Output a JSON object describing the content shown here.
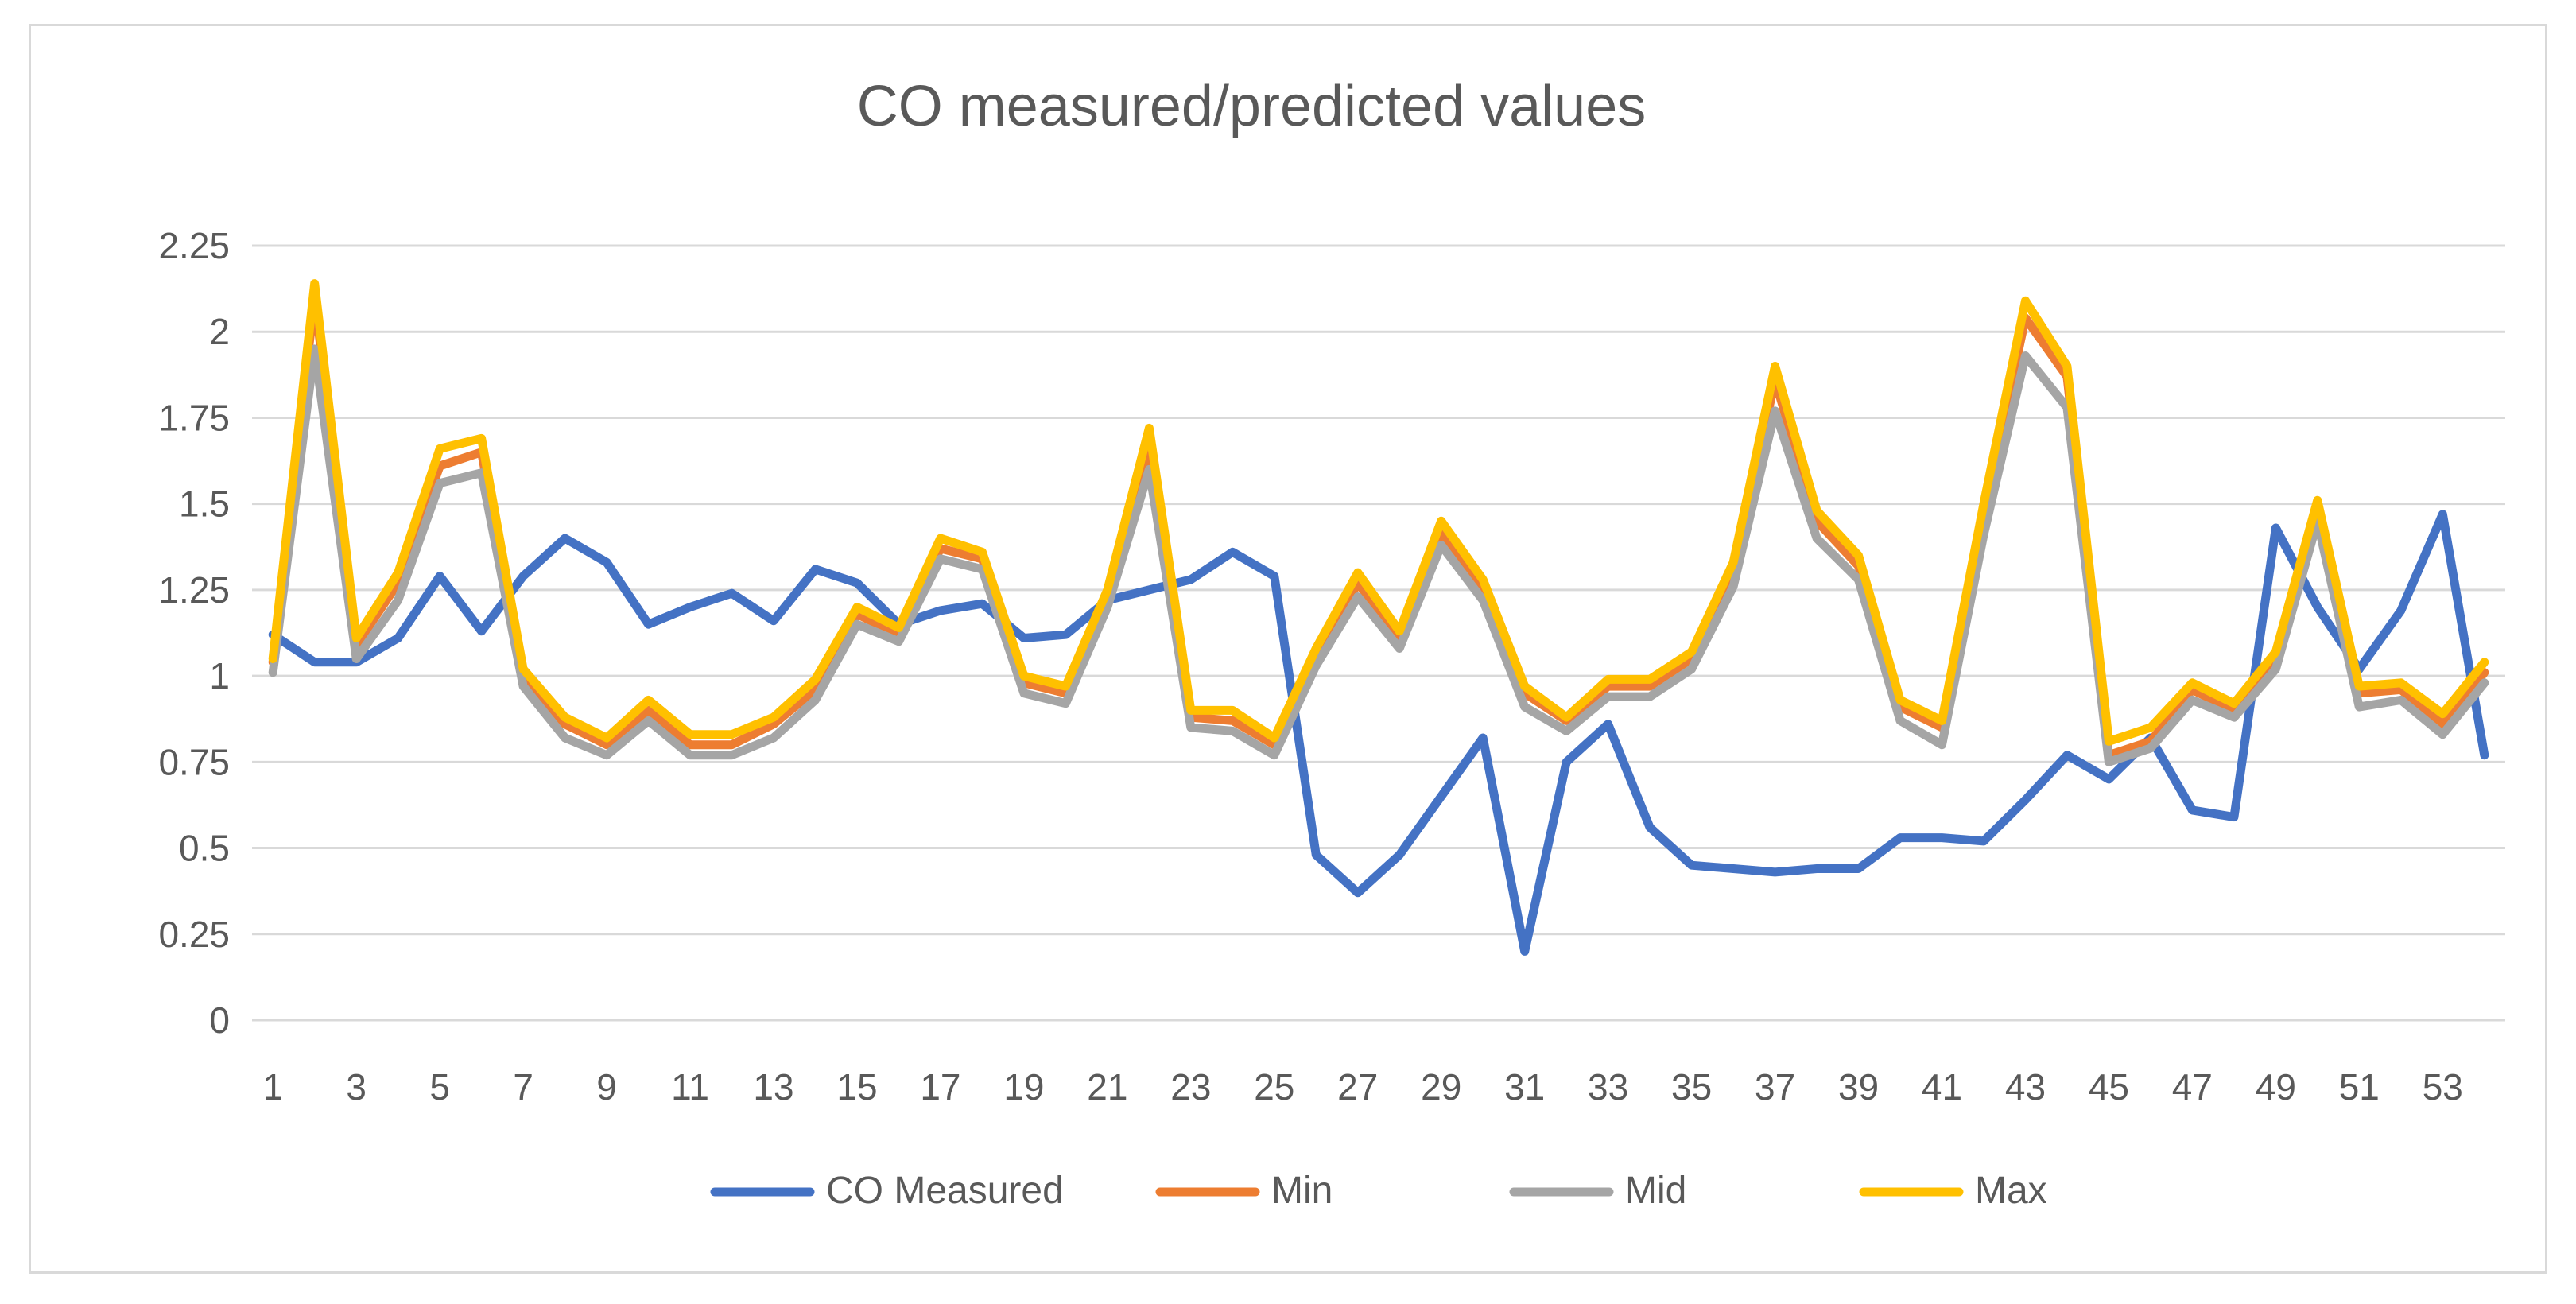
{
  "chart_data": {
    "type": "line",
    "title": "CO measured/predicted values",
    "xlabel": "",
    "ylabel": "",
    "ylim": [
      0,
      2.25
    ],
    "yticks": [
      "0",
      "0.25",
      "0.5",
      "0.75",
      "1",
      "1.25",
      "1.5",
      "1.75",
      "2",
      "2.25"
    ],
    "ytick_values": [
      0,
      0.25,
      0.5,
      0.75,
      1,
      1.25,
      1.5,
      1.75,
      2,
      2.25
    ],
    "x": [
      1,
      2,
      3,
      4,
      5,
      6,
      7,
      8,
      9,
      10,
      11,
      12,
      13,
      14,
      15,
      16,
      17,
      18,
      19,
      20,
      21,
      22,
      23,
      24,
      25,
      26,
      27,
      28,
      29,
      30,
      31,
      32,
      33,
      34,
      35,
      36,
      37,
      38,
      39,
      40,
      41,
      42,
      43,
      44,
      45,
      46,
      47,
      48,
      49,
      50,
      51,
      52,
      53,
      54
    ],
    "xtick_labels": [
      "1",
      "3",
      "5",
      "7",
      "9",
      "11",
      "13",
      "15",
      "17",
      "19",
      "21",
      "23",
      "25",
      "27",
      "29",
      "31",
      "33",
      "35",
      "37",
      "39",
      "41",
      "43",
      "45",
      "47",
      "49",
      "51",
      "53"
    ],
    "xtick_values": [
      1,
      3,
      5,
      7,
      9,
      11,
      13,
      15,
      17,
      19,
      21,
      23,
      25,
      27,
      29,
      31,
      33,
      35,
      37,
      39,
      41,
      43,
      45,
      47,
      49,
      51,
      53
    ],
    "grid": true,
    "legend_position": "bottom",
    "series": [
      {
        "name": "CO Measured",
        "color": "#4472c4",
        "values": [
          1.12,
          1.04,
          1.04,
          1.11,
          1.29,
          1.13,
          1.29,
          1.4,
          1.33,
          1.15,
          1.2,
          1.24,
          1.16,
          1.31,
          1.27,
          1.15,
          1.19,
          1.21,
          1.11,
          1.12,
          1.22,
          1.25,
          1.28,
          1.36,
          1.29,
          0.48,
          0.37,
          0.48,
          0.65,
          0.82,
          0.2,
          0.75,
          0.86,
          0.56,
          0.45,
          0.44,
          0.43,
          0.44,
          0.44,
          0.53,
          0.53,
          0.52,
          0.64,
          0.77,
          0.7,
          0.82,
          0.61,
          0.59,
          1.43,
          1.2,
          1.02,
          1.19,
          1.47,
          0.77
        ]
      },
      {
        "name": "Min",
        "color": "#ed7d31",
        "values": [
          1.04,
          2.1,
          1.09,
          1.27,
          1.61,
          1.65,
          1.0,
          0.86,
          0.8,
          0.9,
          0.8,
          0.8,
          0.86,
          0.96,
          1.18,
          1.12,
          1.37,
          1.34,
          0.98,
          0.95,
          1.23,
          1.67,
          0.88,
          0.87,
          0.8,
          1.06,
          1.27,
          1.11,
          1.42,
          1.25,
          0.95,
          0.87,
          0.97,
          0.97,
          1.05,
          1.3,
          1.86,
          1.45,
          1.32,
          0.91,
          0.85,
          1.47,
          2.04,
          1.87,
          0.77,
          0.81,
          0.96,
          0.9,
          1.05,
          1.49,
          0.95,
          0.96,
          0.86,
          1.01
        ]
      },
      {
        "name": "Mid",
        "color": "#a5a5a5",
        "values": [
          1.01,
          1.95,
          1.05,
          1.22,
          1.56,
          1.59,
          0.97,
          0.82,
          0.77,
          0.87,
          0.77,
          0.77,
          0.82,
          0.93,
          1.15,
          1.1,
          1.34,
          1.31,
          0.95,
          0.92,
          1.2,
          1.6,
          0.85,
          0.84,
          0.77,
          1.03,
          1.23,
          1.08,
          1.38,
          1.22,
          0.91,
          0.84,
          0.94,
          0.94,
          1.02,
          1.26,
          1.77,
          1.4,
          1.28,
          0.87,
          0.8,
          1.41,
          1.93,
          1.78,
          0.75,
          0.79,
          0.93,
          0.88,
          1.02,
          1.45,
          0.91,
          0.93,
          0.83,
          0.98
        ]
      },
      {
        "name": "Max",
        "color": "#ffc000",
        "values": [
          1.05,
          2.14,
          1.11,
          1.3,
          1.66,
          1.69,
          1.02,
          0.88,
          0.82,
          0.93,
          0.83,
          0.83,
          0.88,
          0.99,
          1.2,
          1.14,
          1.4,
          1.36,
          1.0,
          0.97,
          1.25,
          1.72,
          0.9,
          0.9,
          0.82,
          1.08,
          1.3,
          1.13,
          1.45,
          1.28,
          0.97,
          0.88,
          0.99,
          0.99,
          1.07,
          1.33,
          1.9,
          1.48,
          1.35,
          0.93,
          0.87,
          1.5,
          2.09,
          1.9,
          0.81,
          0.85,
          0.98,
          0.92,
          1.07,
          1.51,
          0.97,
          0.98,
          0.89,
          1.04
        ]
      }
    ]
  }
}
